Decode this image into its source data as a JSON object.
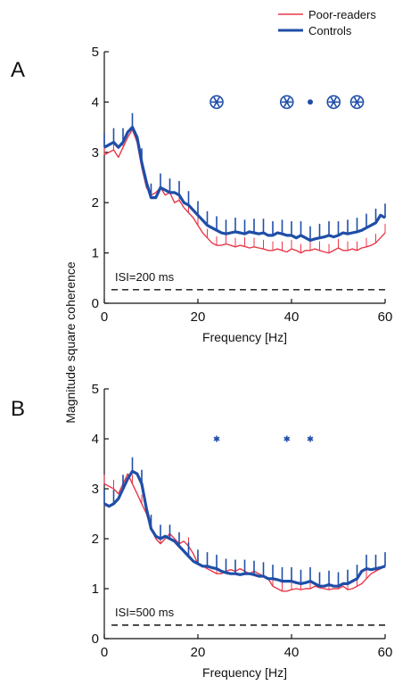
{
  "figure": {
    "ylabel": "Magnitude square coherence",
    "legend": [
      {
        "label": "Poor-readers",
        "color": "#e8384a"
      },
      {
        "label": "Controls",
        "color": "#1f4ea8"
      }
    ]
  },
  "chart_data": [
    {
      "panel": "A",
      "type": "line",
      "xlabel": "Frequency [Hz]",
      "ylabel": "Magnitude square coherence",
      "xlim": [
        0,
        60
      ],
      "ylim": [
        0,
        5
      ],
      "xticks": [
        0,
        20,
        40,
        60
      ],
      "yticks": [
        0,
        1,
        2,
        3,
        4,
        5
      ],
      "annotation": "ISI=200 ms",
      "dashed_level": 0.27,
      "significance_markers": [
        {
          "x": 24,
          "y": 4.0,
          "symbol": "star-circle"
        },
        {
          "x": 39,
          "y": 4.0,
          "symbol": "star-circle"
        },
        {
          "x": 44,
          "y": 4.0,
          "symbol": "dot"
        },
        {
          "x": 49,
          "y": 4.0,
          "symbol": "star-circle"
        },
        {
          "x": 54,
          "y": 4.0,
          "symbol": "star-circle"
        }
      ],
      "series": [
        {
          "name": "Poor-readers",
          "color": "#e8384a",
          "x": [
            0,
            1,
            2,
            3,
            4,
            5,
            6,
            7,
            8,
            9,
            10,
            11,
            12,
            13,
            14,
            15,
            16,
            17,
            18,
            19,
            20,
            21,
            22,
            23,
            24,
            25,
            26,
            27,
            28,
            29,
            30,
            31,
            32,
            33,
            34,
            35,
            36,
            37,
            38,
            39,
            40,
            41,
            42,
            43,
            44,
            45,
            46,
            47,
            48,
            49,
            50,
            51,
            52,
            53,
            54,
            55,
            56,
            57,
            58,
            59,
            60
          ],
          "values": [
            2.95,
            3.0,
            3.05,
            2.9,
            3.1,
            3.3,
            3.45,
            3.2,
            2.7,
            2.3,
            2.15,
            2.2,
            2.3,
            2.15,
            2.2,
            2.0,
            2.05,
            1.9,
            1.8,
            1.7,
            1.55,
            1.4,
            1.3,
            1.2,
            1.15,
            1.15,
            1.18,
            1.15,
            1.12,
            1.15,
            1.13,
            1.1,
            1.12,
            1.1,
            1.08,
            1.05,
            1.05,
            1.08,
            1.05,
            1.02,
            1.08,
            1.05,
            1.0,
            1.05,
            1.05,
            1.08,
            1.05,
            1.02,
            1.0,
            1.05,
            1.1,
            1.05,
            1.05,
            1.08,
            1.05,
            1.1,
            1.12,
            1.15,
            1.2,
            1.3,
            1.4
          ]
        },
        {
          "name": "Controls",
          "color": "#1f4ea8",
          "x": [
            0,
            1,
            2,
            3,
            4,
            5,
            6,
            7,
            8,
            9,
            10,
            11,
            12,
            13,
            14,
            15,
            16,
            17,
            18,
            19,
            20,
            21,
            22,
            23,
            24,
            25,
            26,
            27,
            28,
            29,
            30,
            31,
            32,
            33,
            34,
            35,
            36,
            37,
            38,
            39,
            40,
            41,
            42,
            43,
            44,
            45,
            46,
            47,
            48,
            49,
            50,
            51,
            52,
            53,
            54,
            55,
            56,
            57,
            58,
            59,
            60
          ],
          "values": [
            3.1,
            3.15,
            3.2,
            3.1,
            3.2,
            3.4,
            3.5,
            3.3,
            2.8,
            2.4,
            2.1,
            2.1,
            2.3,
            2.25,
            2.2,
            2.2,
            2.15,
            2.0,
            1.95,
            1.85,
            1.75,
            1.65,
            1.55,
            1.5,
            1.45,
            1.4,
            1.38,
            1.4,
            1.42,
            1.4,
            1.38,
            1.42,
            1.4,
            1.38,
            1.4,
            1.35,
            1.35,
            1.4,
            1.38,
            1.35,
            1.35,
            1.3,
            1.35,
            1.3,
            1.25,
            1.28,
            1.3,
            1.32,
            1.35,
            1.32,
            1.35,
            1.4,
            1.38,
            1.4,
            1.42,
            1.45,
            1.5,
            1.55,
            1.6,
            1.75,
            1.7
          ]
        }
      ]
    },
    {
      "panel": "B",
      "type": "line",
      "xlabel": "Frequency [Hz]",
      "ylabel": "Magnitude square coherence",
      "xlim": [
        0,
        60
      ],
      "ylim": [
        0,
        5
      ],
      "xticks": [
        0,
        20,
        40,
        60
      ],
      "yticks": [
        0,
        1,
        2,
        3,
        4,
        5
      ],
      "annotation": "ISI=500 ms",
      "dashed_level": 0.27,
      "significance_markers": [
        {
          "x": 24,
          "y": 4.0,
          "symbol": "asterisk"
        },
        {
          "x": 39,
          "y": 4.0,
          "symbol": "asterisk"
        },
        {
          "x": 44,
          "y": 4.0,
          "symbol": "asterisk"
        }
      ],
      "series": [
        {
          "name": "Poor-readers",
          "color": "#e8384a",
          "x": [
            0,
            1,
            2,
            3,
            4,
            5,
            6,
            7,
            8,
            9,
            10,
            11,
            12,
            13,
            14,
            15,
            16,
            17,
            18,
            19,
            20,
            21,
            22,
            23,
            24,
            25,
            26,
            27,
            28,
            29,
            30,
            31,
            32,
            33,
            34,
            35,
            36,
            37,
            38,
            39,
            40,
            41,
            42,
            43,
            44,
            45,
            46,
            47,
            48,
            49,
            50,
            51,
            52,
            53,
            54,
            55,
            56,
            57,
            58,
            59,
            60
          ],
          "values": [
            3.1,
            3.05,
            3.0,
            2.9,
            3.1,
            3.3,
            3.1,
            2.9,
            2.7,
            2.5,
            2.2,
            2.0,
            1.9,
            2.0,
            2.1,
            2.0,
            1.9,
            1.95,
            1.85,
            1.7,
            1.5,
            1.45,
            1.4,
            1.35,
            1.3,
            1.3,
            1.35,
            1.38,
            1.35,
            1.4,
            1.35,
            1.3,
            1.35,
            1.3,
            1.25,
            1.2,
            1.05,
            1.0,
            0.95,
            0.95,
            0.98,
            1.0,
            0.98,
            1.0,
            1.0,
            1.05,
            1.02,
            1.0,
            0.98,
            1.0,
            1.0,
            1.05,
            0.98,
            1.0,
            1.05,
            1.1,
            1.2,
            1.3,
            1.35,
            1.4,
            1.45
          ]
        },
        {
          "name": "Controls",
          "color": "#1f4ea8",
          "x": [
            0,
            1,
            2,
            3,
            4,
            5,
            6,
            7,
            8,
            9,
            10,
            11,
            12,
            13,
            14,
            15,
            16,
            17,
            18,
            19,
            20,
            21,
            22,
            23,
            24,
            25,
            26,
            27,
            28,
            29,
            30,
            31,
            32,
            33,
            34,
            35,
            36,
            37,
            38,
            39,
            40,
            41,
            42,
            43,
            44,
            45,
            46,
            47,
            48,
            49,
            50,
            51,
            52,
            53,
            54,
            55,
            56,
            57,
            58,
            59,
            60
          ],
          "values": [
            2.7,
            2.65,
            2.7,
            2.8,
            3.0,
            3.2,
            3.35,
            3.3,
            3.1,
            2.6,
            2.2,
            2.05,
            2.0,
            2.05,
            2.0,
            1.95,
            1.85,
            1.75,
            1.65,
            1.55,
            1.5,
            1.45,
            1.45,
            1.42,
            1.4,
            1.35,
            1.32,
            1.3,
            1.3,
            1.28,
            1.3,
            1.3,
            1.28,
            1.25,
            1.25,
            1.2,
            1.2,
            1.18,
            1.15,
            1.15,
            1.15,
            1.12,
            1.1,
            1.12,
            1.15,
            1.1,
            1.05,
            1.05,
            1.08,
            1.05,
            1.05,
            1.1,
            1.1,
            1.15,
            1.2,
            1.35,
            1.4,
            1.38,
            1.4,
            1.42,
            1.45
          ]
        }
      ]
    }
  ]
}
